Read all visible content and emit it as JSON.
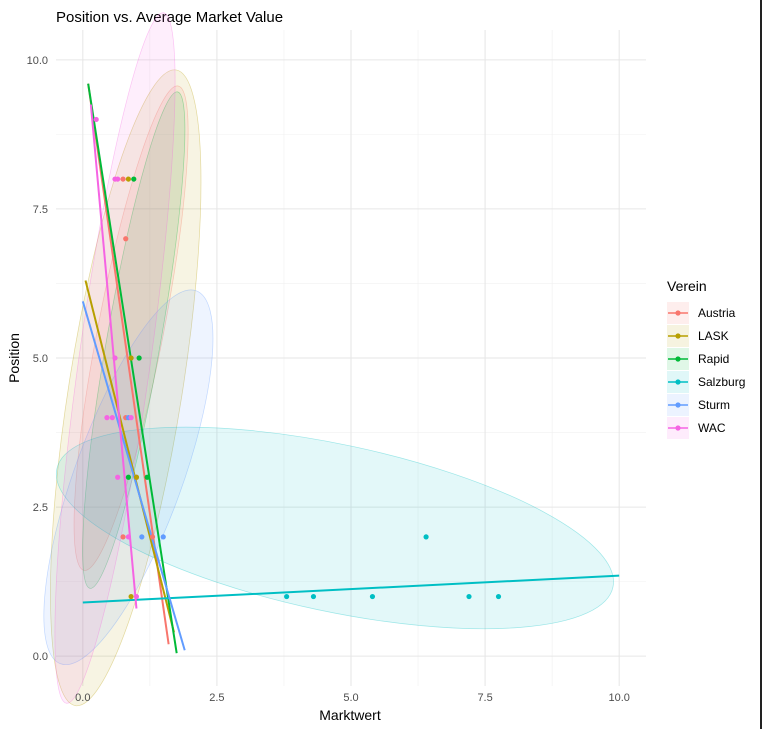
{
  "chart_data": {
    "type": "scatter",
    "title": "Position vs. Average Market Value",
    "xlabel": "Marktwert",
    "ylabel": "Position",
    "xlim": [
      -0.5,
      10.5
    ],
    "ylim": [
      -0.5,
      10.5
    ],
    "x_ticks": [
      0.0,
      2.5,
      5.0,
      7.5,
      10.0
    ],
    "x_tick_labels": [
      "0.0",
      "2.5",
      "5.0",
      "7.5",
      "10.0"
    ],
    "y_ticks": [
      0.0,
      2.5,
      5.0,
      7.5,
      10.0
    ],
    "y_tick_labels": [
      "0.0",
      "2.5",
      "5.0",
      "7.5",
      "10.0"
    ],
    "grid": true,
    "legend": {
      "title": "Verein",
      "position": "right"
    },
    "series": [
      {
        "name": "Austria",
        "color": "#F8766D",
        "points": [
          [
            0.75,
            8
          ],
          [
            0.8,
            7
          ],
          [
            0.8,
            4
          ],
          [
            1.0,
            3
          ],
          [
            0.75,
            2
          ],
          [
            1.3,
            2
          ]
        ],
        "trend": [
          [
            0.1,
            9.6
          ],
          [
            1.6,
            0.2
          ]
        ],
        "ellipse": {
          "cx": 0.9,
          "cy": 5.5,
          "rx": 4.6,
          "ry": 0.55,
          "angle": -79,
          "color": "#F8766D"
        }
      },
      {
        "name": "LASK",
        "color": "#B79F00",
        "points": [
          [
            0.85,
            8
          ],
          [
            0.9,
            5
          ],
          [
            1.0,
            3
          ],
          [
            0.9,
            1
          ]
        ],
        "trend": [
          [
            0.05,
            6.3
          ],
          [
            1.7,
            0.4
          ]
        ],
        "ellipse": {
          "cx": 0.8,
          "cy": 4.5,
          "rx": 6.0,
          "ry": 0.95,
          "angle": -81,
          "color": "#B79F00"
        }
      },
      {
        "name": "Rapid",
        "color": "#00BA38",
        "points": [
          [
            0.95,
            8
          ],
          [
            1.05,
            5
          ],
          [
            0.85,
            3
          ],
          [
            1.2,
            3
          ]
        ],
        "trend": [
          [
            0.1,
            9.6
          ],
          [
            1.75,
            0.05
          ]
        ],
        "ellipse": {
          "cx": 0.95,
          "cy": 5.3,
          "rx": 4.7,
          "ry": 0.45,
          "angle": -80,
          "color": "#00BA38"
        }
      },
      {
        "name": "Salzburg",
        "color": "#00BFC4",
        "points": [
          [
            6.4,
            2
          ],
          [
            3.8,
            1
          ],
          [
            4.3,
            1
          ],
          [
            5.4,
            1
          ],
          [
            7.2,
            1
          ],
          [
            7.75,
            1
          ]
        ],
        "trend": [
          [
            0.0,
            0.9
          ],
          [
            10.0,
            1.35
          ]
        ],
        "ellipse": {
          "cx": 4.7,
          "cy": 2.15,
          "rx": 5.3,
          "ry": 1.4,
          "angle": 12,
          "color": "#00BFC4"
        }
      },
      {
        "name": "Sturm",
        "color": "#619CFF",
        "points": [
          [
            0.85,
            4
          ],
          [
            1.1,
            2
          ],
          [
            1.5,
            2
          ]
        ],
        "trend": [
          [
            0.0,
            5.95
          ],
          [
            1.9,
            0.1
          ]
        ],
        "ellipse": {
          "cx": 0.85,
          "cy": 3.0,
          "rx": 3.7,
          "ry": 0.9,
          "angle": -70,
          "color": "#619CFF"
        }
      },
      {
        "name": "WAC",
        "color": "#F564E3",
        "points": [
          [
            0.25,
            9
          ],
          [
            0.6,
            8
          ],
          [
            0.65,
            8
          ],
          [
            0.45,
            4
          ],
          [
            0.55,
            4
          ],
          [
            0.6,
            5
          ],
          [
            0.65,
            3
          ],
          [
            0.85,
            2
          ],
          [
            0.9,
            4
          ],
          [
            1.0,
            1
          ]
        ],
        "trend": [
          [
            0.15,
            9.25
          ],
          [
            1.0,
            0.8
          ]
        ],
        "ellipse": {
          "cx": 0.6,
          "cy": 5.0,
          "rx": 6.5,
          "ry": 0.6,
          "angle": -82,
          "color": "#F564E3"
        }
      }
    ]
  }
}
